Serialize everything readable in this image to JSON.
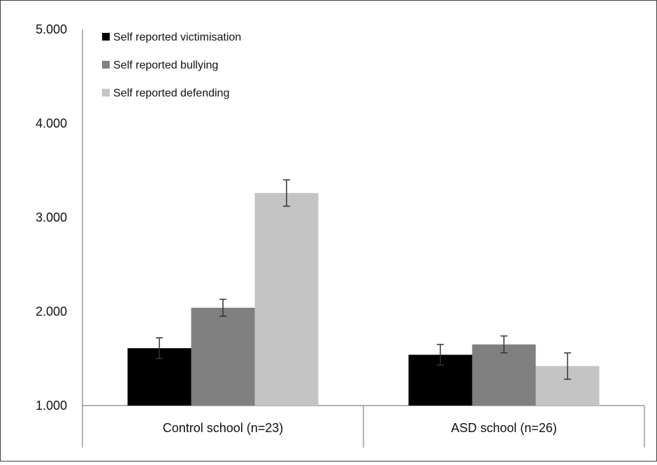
{
  "chart_data": {
    "type": "bar",
    "title": "",
    "xlabel": "",
    "ylabel": "",
    "ylim": [
      1.0,
      5.0
    ],
    "y_ticks": [
      "1.000",
      "2.000",
      "3.000",
      "4.000",
      "5.000"
    ],
    "y_tick_values": [
      1,
      2,
      3,
      4,
      5
    ],
    "categories": [
      "Control school (n=23)",
      "ASD school (n=26)"
    ],
    "series": [
      {
        "name": "Self reported victimisation",
        "color": "#000000",
        "values": [
          1.61,
          1.54
        ],
        "error": [
          0.11,
          0.11
        ]
      },
      {
        "name": "Self reported bullying",
        "color": "#808080",
        "values": [
          2.04,
          1.65
        ],
        "error": [
          0.09,
          0.09
        ]
      },
      {
        "name": "Self reported defending",
        "color": "#c4c4c4",
        "values": [
          3.26,
          1.42
        ],
        "error": [
          0.14,
          0.14
        ]
      }
    ],
    "legend_position": "top-left",
    "grid": false,
    "error_bars": true
  }
}
